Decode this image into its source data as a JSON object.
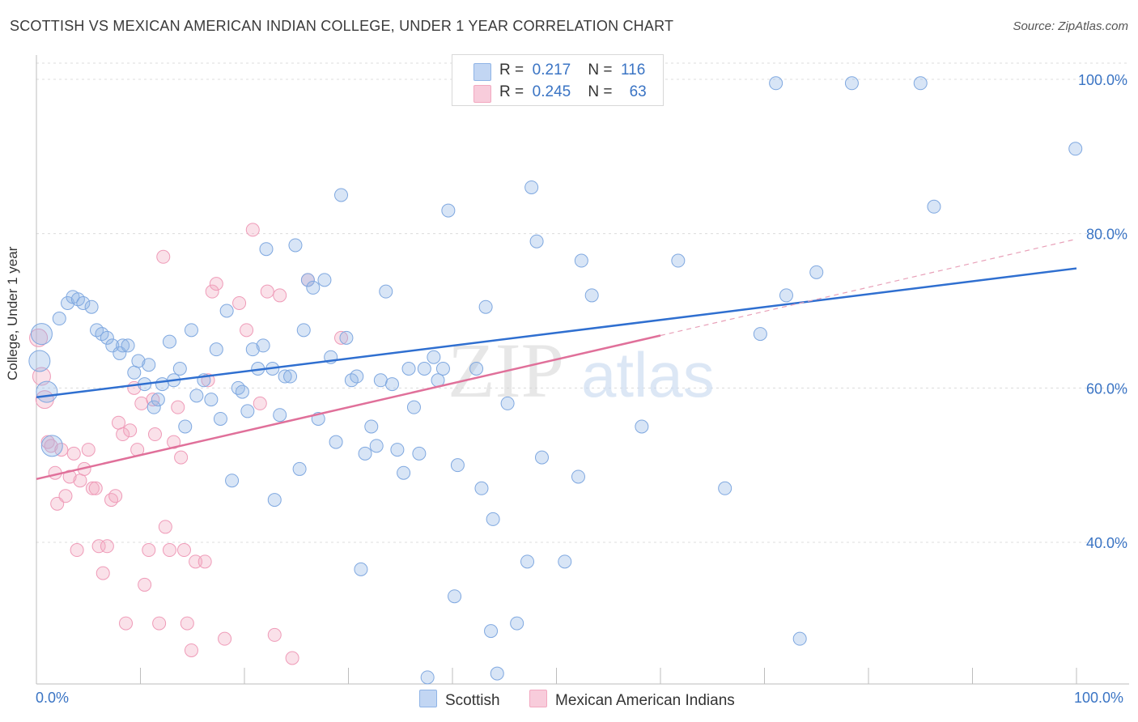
{
  "title": "SCOTTISH VS MEXICAN AMERICAN INDIAN COLLEGE, UNDER 1 YEAR CORRELATION CHART",
  "source": "Source: ZipAtlas.com",
  "ylabel": "College, Under 1 year",
  "legend": {
    "scottish": {
      "r_label": "R =",
      "r_value": "0.217",
      "n_label": "N =",
      "n_value": "116"
    },
    "mexican": {
      "r_label": "R =",
      "r_value": "0.245",
      "n_label": "N =",
      "n_value": "63"
    }
  },
  "bottom_legend": {
    "scottish": "Scottish",
    "mexican": "Mexican American Indians"
  },
  "x_ticks": {
    "left": "0.0%",
    "right": "100.0%"
  },
  "watermark": {
    "zip": "ZIP",
    "atlas": "atlas"
  },
  "colors": {
    "scottish": "#8fb4e6",
    "scottish_line": "#2f6fd0",
    "mexican": "#f2a8c0",
    "mexican_line": "#e0709a",
    "axis_text": "#3a74c4"
  },
  "chart_data": {
    "type": "scatter",
    "xlim": [
      0,
      100
    ],
    "ylim": [
      20,
      100
    ],
    "y_ticks": [
      {
        "value": 100,
        "label": "100.0%"
      },
      {
        "value": 80,
        "label": "80.0%"
      },
      {
        "value": 60,
        "label": "60.0%"
      },
      {
        "value": 40,
        "label": "40.0%"
      }
    ],
    "grid": true,
    "series": [
      {
        "name": "Scottish",
        "trend": {
          "x": [
            0,
            100
          ],
          "y": [
            58.8,
            75.5
          ]
        },
        "points": [
          [
            0.3,
            63.5
          ],
          [
            0.5,
            67
          ],
          [
            1,
            59.5
          ],
          [
            1.5,
            52.5
          ],
          [
            2.2,
            69
          ],
          [
            3,
            71
          ],
          [
            3.5,
            71.8
          ],
          [
            4,
            71.5
          ],
          [
            4.5,
            71
          ],
          [
            5.3,
            70.5
          ],
          [
            5.8,
            67.5
          ],
          [
            6.3,
            67
          ],
          [
            6.8,
            66.5
          ],
          [
            7.3,
            65.5
          ],
          [
            8,
            64.5
          ],
          [
            8.3,
            65.5
          ],
          [
            8.8,
            65.5
          ],
          [
            9.4,
            62
          ],
          [
            9.8,
            63.5
          ],
          [
            10.4,
            60.5
          ],
          [
            10.8,
            63
          ],
          [
            11.3,
            57.5
          ],
          [
            11.7,
            58.5
          ],
          [
            12.1,
            60.5
          ],
          [
            12.8,
            66
          ],
          [
            13.2,
            61
          ],
          [
            13.8,
            62.5
          ],
          [
            14.3,
            55
          ],
          [
            14.9,
            67.5
          ],
          [
            15.4,
            59
          ],
          [
            16.1,
            61
          ],
          [
            16.8,
            58.5
          ],
          [
            17.3,
            65
          ],
          [
            17.7,
            56
          ],
          [
            18.3,
            70
          ],
          [
            18.8,
            48
          ],
          [
            19.4,
            60
          ],
          [
            19.8,
            59.5
          ],
          [
            20.3,
            57
          ],
          [
            20.8,
            65
          ],
          [
            21.3,
            62.5
          ],
          [
            21.8,
            65.5
          ],
          [
            22.1,
            78
          ],
          [
            22.7,
            62.5
          ],
          [
            22.9,
            45.5
          ],
          [
            23.4,
            56.5
          ],
          [
            23.9,
            61.5
          ],
          [
            24.4,
            61.5
          ],
          [
            24.9,
            78.5
          ],
          [
            25.3,
            49.5
          ],
          [
            25.7,
            67.5
          ],
          [
            26.1,
            74
          ],
          [
            26.6,
            73
          ],
          [
            27.1,
            56
          ],
          [
            27.7,
            74
          ],
          [
            28.3,
            64
          ],
          [
            28.8,
            53
          ],
          [
            29.3,
            85
          ],
          [
            29.8,
            66.5
          ],
          [
            30.3,
            61
          ],
          [
            30.8,
            61.5
          ],
          [
            31.2,
            36.5
          ],
          [
            31.6,
            51.5
          ],
          [
            32.2,
            55
          ],
          [
            32.7,
            52.5
          ],
          [
            33.1,
            61
          ],
          [
            33.6,
            72.5
          ],
          [
            34.2,
            60.5
          ],
          [
            34.7,
            52
          ],
          [
            35.3,
            49
          ],
          [
            35.8,
            62.5
          ],
          [
            36.3,
            57.5
          ],
          [
            36.8,
            51.5
          ],
          [
            37.3,
            62.5
          ],
          [
            37.6,
            22.5
          ],
          [
            38.2,
            64
          ],
          [
            38.6,
            61
          ],
          [
            39.1,
            62.5
          ],
          [
            39.6,
            83
          ],
          [
            40.2,
            33
          ],
          [
            40.5,
            50
          ],
          [
            41,
            99.5
          ],
          [
            42.3,
            62.5
          ],
          [
            42.8,
            47
          ],
          [
            43.2,
            70.5
          ],
          [
            43.7,
            28.5
          ],
          [
            43.9,
            43
          ],
          [
            44.3,
            23
          ],
          [
            44.9,
            99.5
          ],
          [
            45.3,
            58
          ],
          [
            46.2,
            29.5
          ],
          [
            47.2,
            37.5
          ],
          [
            47.6,
            86
          ],
          [
            48.1,
            79
          ],
          [
            48.6,
            51
          ],
          [
            49.6,
            99.5
          ],
          [
            50.8,
            37.5
          ],
          [
            52.1,
            48.5
          ],
          [
            52.4,
            76.5
          ],
          [
            53.4,
            72
          ],
          [
            56.7,
            99.5
          ],
          [
            58.2,
            55
          ],
          [
            59.1,
            99.5
          ],
          [
            61.7,
            76.5
          ],
          [
            66.2,
            47
          ],
          [
            69.6,
            67
          ],
          [
            71.1,
            99.5
          ],
          [
            72.1,
            72
          ],
          [
            73.4,
            27.5
          ],
          [
            75,
            75
          ],
          [
            78.4,
            99.5
          ],
          [
            85,
            99.5
          ],
          [
            86.3,
            83.5
          ],
          [
            99.9,
            91
          ]
        ]
      },
      {
        "name": "Mexican American Indians",
        "trend": {
          "x": [
            0,
            60
          ],
          "y": [
            48.2,
            66.8
          ]
        },
        "trend_dashed": {
          "x": [
            60,
            100
          ],
          "y": [
            66.8,
            79.3
          ]
        },
        "points": [
          [
            0.2,
            66.5
          ],
          [
            0.5,
            61.5
          ],
          [
            0.8,
            58.5
          ],
          [
            1.1,
            53
          ],
          [
            1.4,
            52.5
          ],
          [
            1.8,
            49
          ],
          [
            2,
            45
          ],
          [
            2.4,
            52
          ],
          [
            2.8,
            46
          ],
          [
            3.2,
            48.5
          ],
          [
            3.6,
            51.5
          ],
          [
            3.9,
            39
          ],
          [
            4.2,
            48
          ],
          [
            4.6,
            49.5
          ],
          [
            5,
            52
          ],
          [
            5.4,
            47
          ],
          [
            5.7,
            47
          ],
          [
            6,
            39.5
          ],
          [
            6.4,
            36
          ],
          [
            6.8,
            39.5
          ],
          [
            7.2,
            45.5
          ],
          [
            7.6,
            46
          ],
          [
            7.9,
            55.5
          ],
          [
            8.3,
            54
          ],
          [
            8.6,
            29.5
          ],
          [
            9,
            54.5
          ],
          [
            9.4,
            60
          ],
          [
            9.7,
            52
          ],
          [
            10.1,
            58
          ],
          [
            10.4,
            34.5
          ],
          [
            10.8,
            39
          ],
          [
            11.2,
            58.5
          ],
          [
            11.4,
            54
          ],
          [
            11.8,
            29.5
          ],
          [
            12.2,
            77
          ],
          [
            12.4,
            42
          ],
          [
            12.8,
            39
          ],
          [
            13.2,
            53
          ],
          [
            13.6,
            57.5
          ],
          [
            13.9,
            51
          ],
          [
            14.2,
            39
          ],
          [
            14.5,
            29.5
          ],
          [
            14.9,
            26
          ],
          [
            15.3,
            37.5
          ],
          [
            16.2,
            37.5
          ],
          [
            16.5,
            61
          ],
          [
            16.9,
            72.5
          ],
          [
            17.3,
            73.5
          ],
          [
            18.1,
            27.5
          ],
          [
            19.5,
            71
          ],
          [
            20.2,
            67.5
          ],
          [
            20.8,
            80.5
          ],
          [
            21.5,
            58
          ],
          [
            22.2,
            72.5
          ],
          [
            22.9,
            28
          ],
          [
            23.4,
            72
          ],
          [
            24.6,
            25
          ],
          [
            26.1,
            74
          ],
          [
            29.3,
            66.5
          ]
        ]
      }
    ]
  }
}
